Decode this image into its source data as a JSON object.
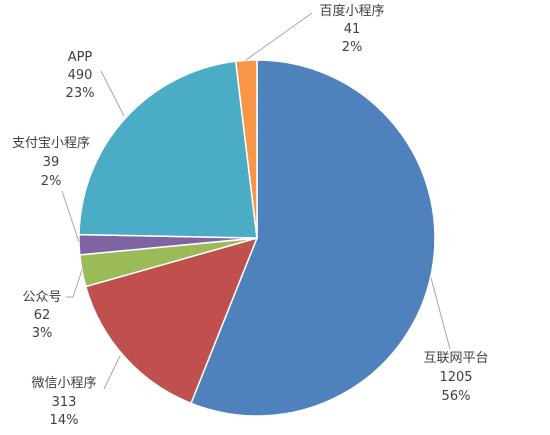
{
  "chart_data": {
    "type": "pie",
    "categories": [
      "互联网平台",
      "微信小程序",
      "公众号",
      "支付宝小程序",
      "APP",
      "百度小程序"
    ],
    "values": [
      1205,
      313,
      62,
      39,
      490,
      41
    ],
    "percent_labels": [
      "56%",
      "14%",
      "3%",
      "2%",
      "23%",
      "2%"
    ],
    "colors": [
      "#4F81BD",
      "#C0504D",
      "#9BBB59",
      "#8064A2",
      "#4BACC6",
      "#F79646"
    ],
    "legend": "none"
  }
}
